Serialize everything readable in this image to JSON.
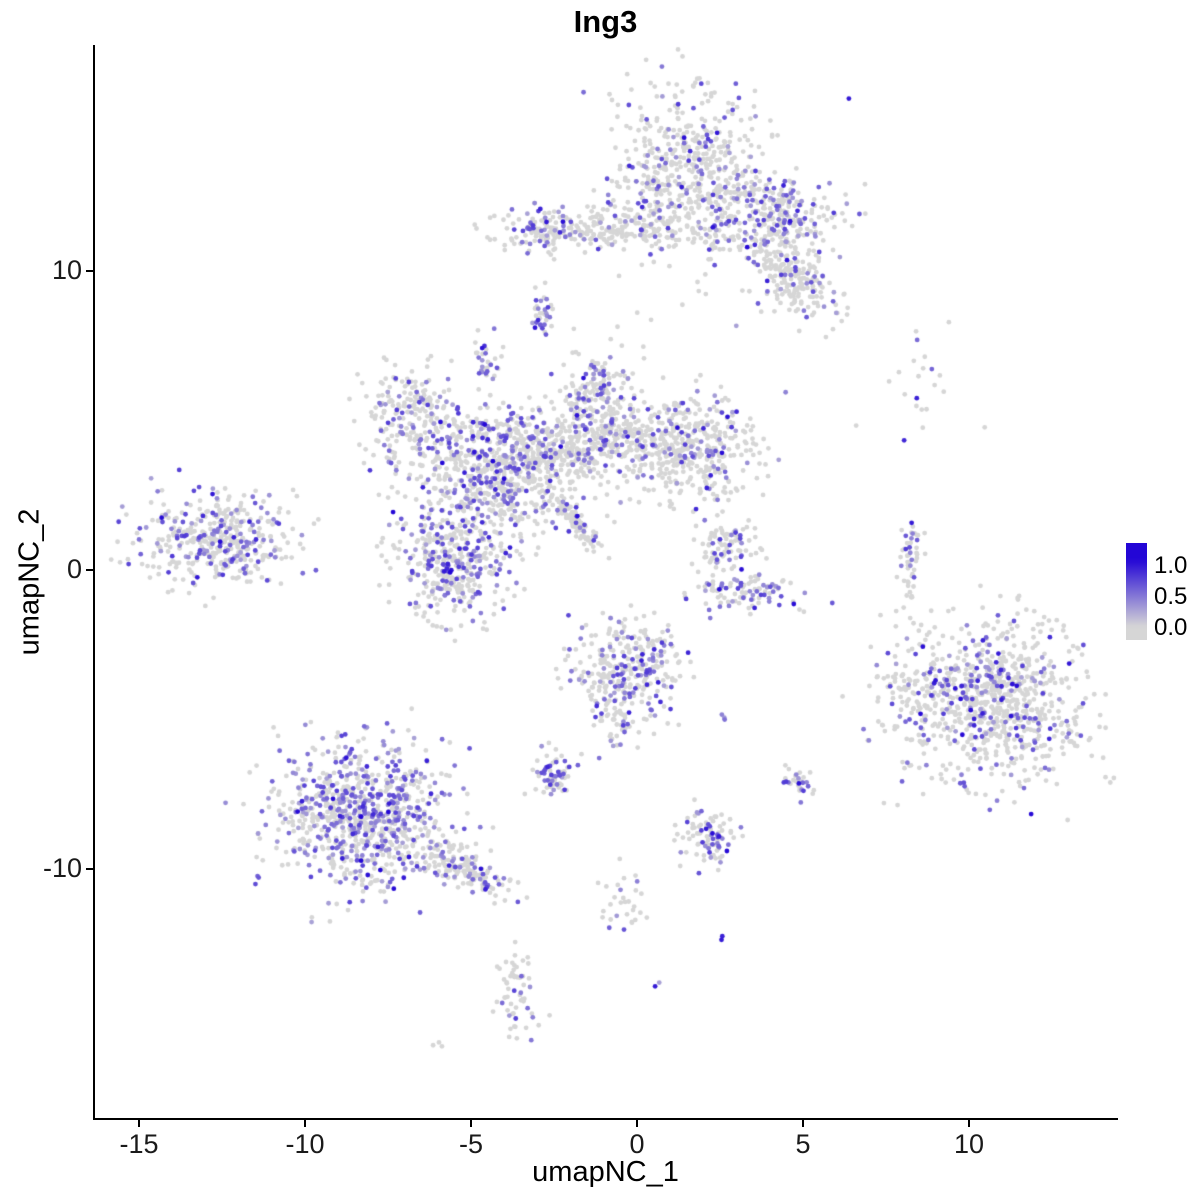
{
  "chart_data": {
    "type": "scatter",
    "title": "Ing3",
    "xlabel": "umapNC_1",
    "ylabel": "umapNC_2",
    "xlim": [
      -16.3,
      14.6
    ],
    "ylim": [
      -18.4,
      17.7
    ],
    "x_ticks": [
      -15,
      -10,
      -5,
      0,
      5,
      10
    ],
    "y_ticks": [
      -10,
      0,
      10
    ],
    "grid": false,
    "point_radius": 2.4,
    "color_low": "#D6D6D6",
    "color_high": "#2306D6",
    "legend": {
      "position": "right",
      "labels": [
        "1.0",
        "0.5",
        "0.0"
      ],
      "low_color": "#D6D6D6",
      "high_color": "#2306D6"
    },
    "clusters": [
      {
        "name": "top-main",
        "x": 1.5,
        "y": 13.3,
        "sx": 1.25,
        "sy": 1.35,
        "n": 560,
        "expr": 0.2,
        "hi": 0.06,
        "rot": 0
      },
      {
        "name": "top-right-patch",
        "x": 4.1,
        "y": 11.9,
        "sx": 1.05,
        "sy": 0.65,
        "n": 270,
        "expr": 0.32,
        "hi": 0.1,
        "rot": 0
      },
      {
        "name": "top-right-arm",
        "x": 4.6,
        "y": 9.8,
        "sx": 0.85,
        "sy": 0.55,
        "n": 220,
        "expr": 0.15,
        "hi": 0.05,
        "rot": -55
      },
      {
        "name": "top-band",
        "x": -1.2,
        "y": 11.4,
        "sx": 1.55,
        "sy": 0.32,
        "n": 250,
        "expr": 0.15,
        "hi": 0.05,
        "rot": 0
      },
      {
        "name": "band-left-tip",
        "x": -2.9,
        "y": 11.4,
        "sx": 0.35,
        "sy": 0.45,
        "n": 45,
        "expr": 0.45,
        "hi": 0.12,
        "rot": 0
      },
      {
        "name": "spot-a",
        "x": -2.8,
        "y": 8.6,
        "sx": 0.18,
        "sy": 0.45,
        "n": 35,
        "expr": 0.45,
        "hi": 0.08,
        "rot": 0
      },
      {
        "name": "spot-b",
        "x": -4.6,
        "y": 7.1,
        "sx": 0.28,
        "sy": 0.5,
        "n": 32,
        "expr": 0.45,
        "hi": 0.08,
        "rot": 0
      },
      {
        "name": "central-left-hook",
        "x": -6.8,
        "y": 5.1,
        "sx": 0.75,
        "sy": 0.85,
        "n": 220,
        "expr": 0.22,
        "hi": 0.05,
        "rot": 0
      },
      {
        "name": "central-main",
        "x": -4.3,
        "y": 3.2,
        "sx": 1.15,
        "sy": 1.15,
        "n": 680,
        "expr": 0.3,
        "hi": 0.07,
        "rot": 0
      },
      {
        "name": "central-top-blob",
        "x": -1.3,
        "y": 5.6,
        "sx": 0.6,
        "sy": 0.8,
        "n": 200,
        "expr": 0.3,
        "hi": 0.07,
        "rot": 0
      },
      {
        "name": "central-bridge",
        "x": -2.4,
        "y": 4.0,
        "sx": 1.0,
        "sy": 0.5,
        "n": 240,
        "expr": 0.2,
        "hi": 0.05,
        "rot": -20
      },
      {
        "name": "central-right-lobe",
        "x": 1.6,
        "y": 4.1,
        "sx": 1.05,
        "sy": 0.85,
        "n": 430,
        "expr": 0.17,
        "hi": 0.05,
        "rot": 0
      },
      {
        "name": "central-lower",
        "x": -5.5,
        "y": 0.2,
        "sx": 0.85,
        "sy": 0.95,
        "n": 380,
        "expr": 0.3,
        "hi": 0.08,
        "rot": 0
      },
      {
        "name": "central-streak",
        "x": -1.9,
        "y": 1.7,
        "sx": 0.6,
        "sy": 0.13,
        "n": 110,
        "expr": 0.12,
        "hi": 0.04,
        "rot": -52
      },
      {
        "name": "central-neck",
        "x": -0.4,
        "y": 4.5,
        "sx": 0.6,
        "sy": 0.5,
        "n": 140,
        "expr": 0.2,
        "hi": 0.05,
        "rot": 0
      },
      {
        "name": "left-cluster",
        "x": -12.7,
        "y": 1.0,
        "sx": 1.15,
        "sy": 0.75,
        "n": 420,
        "expr": 0.3,
        "hi": 0.07,
        "rot": 0
      },
      {
        "name": "arc-top",
        "x": 2.6,
        "y": 0.9,
        "sx": 0.5,
        "sy": 0.5,
        "n": 85,
        "expr": 0.2,
        "hi": 0.05,
        "rot": 0
      },
      {
        "name": "arc-bottom",
        "x": 3.2,
        "y": -0.7,
        "sx": 0.8,
        "sy": 0.35,
        "n": 105,
        "expr": 0.45,
        "hi": 0.1,
        "rot": 0
      },
      {
        "name": "right-streak",
        "x": 8.2,
        "y": 0.2,
        "sx": 0.15,
        "sy": 0.8,
        "n": 55,
        "expr": 0.25,
        "hi": 0.05,
        "rot": 0
      },
      {
        "name": "sparse-top-right",
        "x": 8.4,
        "y": 6.3,
        "sx": 1.0,
        "sy": 0.9,
        "n": 22,
        "expr": 0.12,
        "hi": 0.3,
        "rot": 0
      },
      {
        "name": "right-cluster",
        "x": 10.6,
        "y": -4.4,
        "sx": 1.45,
        "sy": 1.3,
        "n": 880,
        "expr": 0.22,
        "hi": 0.12,
        "rot": 0
      },
      {
        "name": "center-bottom",
        "x": -0.3,
        "y": -3.4,
        "sx": 0.8,
        "sy": 0.85,
        "n": 320,
        "expr": 0.3,
        "hi": 0.08,
        "rot": 0
      },
      {
        "name": "center-bottom-tail",
        "x": -0.6,
        "y": -5.2,
        "sx": 0.25,
        "sy": 0.5,
        "n": 40,
        "expr": 0.2,
        "hi": 0.05,
        "rot": 0
      },
      {
        "name": "dot-a",
        "x": 2.7,
        "y": -5.0,
        "sx": 0.1,
        "sy": 0.1,
        "n": 3,
        "expr": 0.8,
        "hi": 0.1,
        "rot": 0
      },
      {
        "name": "bottom-left",
        "x": -8.3,
        "y": -8.2,
        "sx": 1.3,
        "sy": 1.15,
        "n": 840,
        "expr": 0.4,
        "hi": 0.07,
        "rot": 0
      },
      {
        "name": "bottom-left-tail",
        "x": -5.3,
        "y": -9.9,
        "sx": 0.75,
        "sy": 0.3,
        "n": 170,
        "expr": 0.3,
        "hi": 0.06,
        "rot": -28
      },
      {
        "name": "small-a",
        "x": -2.5,
        "y": -6.9,
        "sx": 0.3,
        "sy": 0.4,
        "n": 70,
        "expr": 0.5,
        "hi": 0.08,
        "rot": 0
      },
      {
        "name": "pair-b",
        "x": 4.9,
        "y": -7.1,
        "sx": 0.22,
        "sy": 0.3,
        "n": 30,
        "expr": 0.5,
        "hi": 0.08,
        "rot": 0
      },
      {
        "name": "small-c",
        "x": 2.2,
        "y": -9.0,
        "sx": 0.4,
        "sy": 0.5,
        "n": 90,
        "expr": 0.35,
        "hi": 0.06,
        "rot": 0
      },
      {
        "name": "trail",
        "x": -0.5,
        "y": -11.2,
        "sx": 0.4,
        "sy": 0.8,
        "n": 30,
        "expr": 0.25,
        "hi": 0.06,
        "rot": 0
      },
      {
        "name": "dot-dark",
        "x": 2.6,
        "y": -12.4,
        "sx": 0.08,
        "sy": 0.08,
        "n": 2,
        "expr": 1.0,
        "hi": 0.9,
        "rot": 0
      },
      {
        "name": "dot-purple",
        "x": 0.6,
        "y": -13.9,
        "sx": 0.08,
        "sy": 0.08,
        "n": 2,
        "expr": 1.0,
        "hi": 0.2,
        "rot": 0
      },
      {
        "name": "small-d",
        "x": -3.6,
        "y": -14.2,
        "sx": 0.28,
        "sy": 0.75,
        "n": 60,
        "expr": 0.2,
        "hi": 0.05,
        "rot": 0
      },
      {
        "name": "dot-grey",
        "x": -5.9,
        "y": -15.8,
        "sx": 0.1,
        "sy": 0.1,
        "n": 3,
        "expr": 0.0,
        "hi": 0,
        "rot": 0
      },
      {
        "name": "sparse-mid",
        "x": 0.5,
        "y": 8.8,
        "sx": 2.2,
        "sy": 0.8,
        "n": 10,
        "expr": 0.1,
        "hi": 0.1,
        "rot": 0
      },
      {
        "name": "sparse-right-low",
        "x": 7.9,
        "y": -4.0,
        "sx": 0.4,
        "sy": 0.5,
        "n": 25,
        "expr": 0.2,
        "hi": 0.05,
        "rot": 0
      }
    ]
  }
}
